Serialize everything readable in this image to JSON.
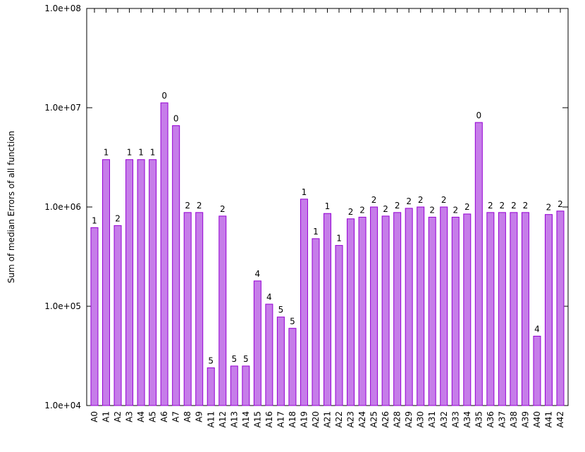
{
  "chart_data": {
    "type": "bar",
    "y_label": "Sum of median Errors of all function",
    "log_scale_y": true,
    "color": "#c67de9",
    "edge_color": "#9400d3",
    "categories": [
      "A0",
      "A1",
      "A2",
      "A3",
      "A4",
      "A5",
      "A6",
      "A7",
      "A8",
      "A9",
      "A11",
      "A12",
      "A13",
      "A14",
      "A15",
      "A16",
      "A17",
      "A18",
      "A19",
      "A20",
      "A21",
      "A22",
      "A23",
      "A24",
      "A25",
      "A26",
      "A28",
      "A29",
      "A30",
      "A31",
      "A32",
      "A33",
      "A34",
      "A35",
      "A36",
      "A37",
      "A38",
      "A39",
      "A40",
      "A41",
      "A42"
    ],
    "values": [
      620000,
      3000000,
      650000,
      3000000,
      3000000,
      3000000,
      11200000,
      6600000,
      880000,
      880000,
      24000,
      810000,
      25000,
      25000,
      180000,
      105000,
      78000,
      60000,
      1200000,
      480000,
      860000,
      410000,
      760000,
      790000,
      1000000,
      810000,
      880000,
      970000,
      1000000,
      790000,
      1000000,
      790000,
      850000,
      7100000,
      880000,
      880000,
      880000,
      880000,
      50000,
      840000,
      910000
    ],
    "annotations": [
      1,
      1,
      2,
      1,
      1,
      1,
      0,
      0,
      2,
      2,
      5,
      2,
      5,
      5,
      4,
      4,
      5,
      5,
      1,
      1,
      1,
      1,
      2,
      2,
      2,
      2,
      2,
      2,
      2,
      2,
      2,
      2,
      2,
      0,
      2,
      2,
      2,
      2,
      4,
      2,
      2
    ],
    "ylim": [
      10000,
      100000000
    ],
    "yticks": [
      {
        "value": 10000,
        "label": "1.0e+04"
      },
      {
        "value": 100000,
        "label": "1.0e+05"
      },
      {
        "value": 1000000,
        "label": "1.0e+06"
      },
      {
        "value": 10000000,
        "label": "1.0e+07"
      },
      {
        "value": 100000000,
        "label": "1.0e+08"
      }
    ]
  }
}
